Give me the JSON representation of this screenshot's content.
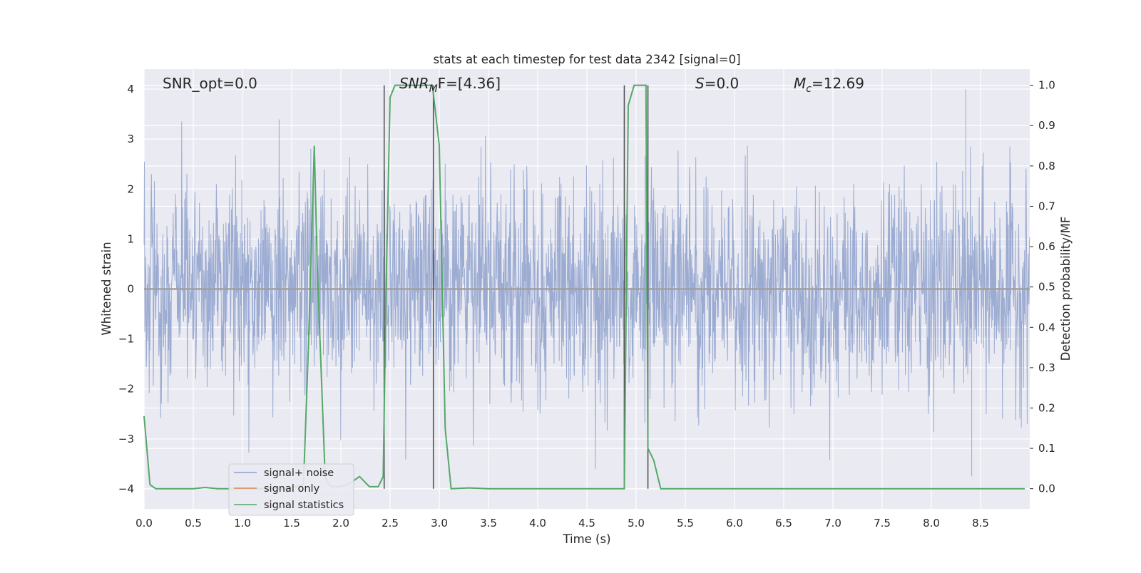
{
  "chart_data": {
    "type": "line",
    "title": "stats at each timestep for test data 2342 [signal=0]",
    "xlabel": "Time (s)",
    "ylabel": "Whitened strain",
    "ylabel_right": "Detection probability/MF",
    "xlim": [
      0.0,
      9.0
    ],
    "ylim": [
      -4.4,
      4.4
    ],
    "ylim_right": [
      -0.05,
      1.04
    ],
    "x_ticks": [
      "0.0",
      "0.5",
      "1.0",
      "1.5",
      "2.0",
      "2.5",
      "3.0",
      "3.5",
      "4.0",
      "4.5",
      "5.0",
      "5.5",
      "6.0",
      "6.5",
      "7.0",
      "7.5",
      "8.0",
      "8.5"
    ],
    "y_ticks": [
      "4",
      "3",
      "2",
      "1",
      "0",
      "−1",
      "−2",
      "−3",
      "−4"
    ],
    "y_right_ticks": [
      "1.0",
      "0.9",
      "0.8",
      "0.7",
      "0.6",
      "0.5",
      "0.4",
      "0.3",
      "0.2",
      "0.1",
      "0.0"
    ],
    "grid": true,
    "legend_position": "lower-left",
    "annotations": {
      "snr_opt": "SNR_opt=0.0",
      "snr_mf_main": "SNR",
      "snr_mf_sub": "M",
      "snr_mf_rest": "F=[4.36]",
      "s_var": "S",
      "s_rest": "=0.0",
      "mc_main": "M",
      "mc_sub": "c",
      "mc_rest": "=12.69"
    },
    "vertical_lines": [
      2.44,
      2.94,
      4.88,
      5.12
    ],
    "noise_envelope": {
      "typical_range": [
        -1.6,
        1.6
      ],
      "max_peak": 4.0,
      "min_peak": -3.75
    },
    "series": [
      {
        "name": "signal+ noise",
        "color": "#8da0cb",
        "axis": "left",
        "note_values": "dense whitened noise, amplitude mostly within ±1.6 with spikes to ~±3.5"
      },
      {
        "name": "signal only",
        "color": "#dd8452",
        "axis": "left",
        "values_x": [
          0.0,
          9.0
        ],
        "values_y": [
          0.0,
          0.0
        ]
      },
      {
        "name": "signal statistics",
        "color": "#55a868",
        "axis": "right",
        "x": [
          0.0,
          0.06,
          0.12,
          0.5,
          0.62,
          0.75,
          1.1,
          1.45,
          1.62,
          1.67,
          1.73,
          1.76,
          1.84,
          1.88,
          1.92,
          2.0,
          2.05,
          2.1,
          2.19,
          2.29,
          2.38,
          2.43,
          2.46,
          2.5,
          2.55,
          2.6,
          2.75,
          2.93,
          3.0,
          3.06,
          3.12,
          3.3,
          3.5,
          4.5,
          4.88,
          4.92,
          4.98,
          5.02,
          5.1,
          5.12,
          5.18,
          5.25,
          5.5,
          8.95
        ],
        "y": [
          0.18,
          0.01,
          0.0,
          0.0,
          0.003,
          0.0,
          0.0,
          0.0,
          0.01,
          0.35,
          0.85,
          0.55,
          0.03,
          0.01,
          0.005,
          0.005,
          0.01,
          0.015,
          0.03,
          0.005,
          0.005,
          0.03,
          0.5,
          0.97,
          1.0,
          1.0,
          1.0,
          1.0,
          0.85,
          0.15,
          0.0,
          0.002,
          0.0,
          0.0,
          0.0,
          0.95,
          1.0,
          1.0,
          1.0,
          0.1,
          0.07,
          0.0,
          0.0,
          0.0
        ]
      }
    ]
  },
  "colors": {
    "background": "#eaeaf2",
    "grid": "#ffffff",
    "noise": "#8da0cb",
    "stat": "#55a868",
    "vline": "#555555"
  }
}
